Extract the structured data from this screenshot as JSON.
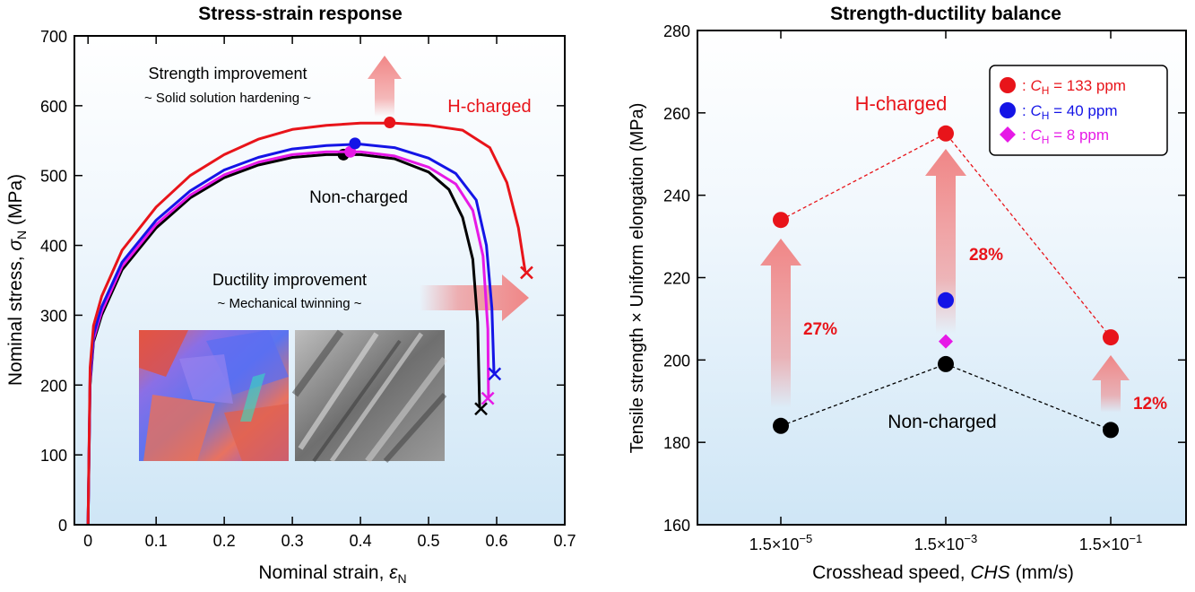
{
  "colors": {
    "h_charged": "#e8141a",
    "ch40": "#1414e6",
    "ch8": "#e619e6",
    "non_charged": "#000000",
    "arrow": "#f08080",
    "bg_top": "#ffffff",
    "bg_bottom": "#cfe6f6"
  },
  "chart_data": [
    {
      "type": "line",
      "title": "Stress-strain response",
      "xlabel_text": "Nominal strain, ",
      "xlabel_symbol": "ε",
      "xlabel_sub": "N",
      "ylabel_text": "Nominal stress, ",
      "ylabel_symbol": "σ",
      "ylabel_sub": "N",
      "ylabel_unit": " (MPa)",
      "xlim": [
        -0.02,
        0.7
      ],
      "ylim": [
        0,
        700
      ],
      "xticks": [
        0,
        0.1,
        0.2,
        0.3,
        0.4,
        0.5,
        0.6,
        0.7
      ],
      "xtick_labels": [
        "0",
        "0.1",
        "0.2",
        "0.3",
        "0.4",
        "0.5",
        "0.6",
        "0.7"
      ],
      "yticks": [
        0,
        100,
        200,
        300,
        400,
        500,
        600,
        700
      ],
      "ytick_labels": [
        "0",
        "100",
        "200",
        "300",
        "400",
        "500",
        "600",
        "700"
      ],
      "series": [
        {
          "key": "non_charged",
          "color": "#000000",
          "x": [
            0,
            0.003,
            0.008,
            0.02,
            0.05,
            0.1,
            0.15,
            0.2,
            0.25,
            0.3,
            0.35,
            0.4,
            0.45,
            0.5,
            0.53,
            0.55,
            0.565,
            0.572,
            0.575
          ],
          "y": [
            0,
            200,
            262,
            300,
            365,
            425,
            468,
            497,
            515,
            526,
            530,
            530,
            524,
            505,
            480,
            440,
            380,
            290,
            168
          ],
          "max_point": [
            0.375,
            530
          ],
          "fracture": [
            0.577,
            166
          ]
        },
        {
          "key": "ch8",
          "color": "#e619e6",
          "x": [
            0,
            0.003,
            0.008,
            0.02,
            0.05,
            0.1,
            0.15,
            0.2,
            0.25,
            0.3,
            0.35,
            0.4,
            0.45,
            0.5,
            0.54,
            0.565,
            0.58,
            0.587,
            0.588
          ],
          "y": [
            0,
            205,
            266,
            305,
            370,
            430,
            472,
            501,
            519,
            530,
            534,
            534,
            528,
            512,
            488,
            450,
            385,
            280,
            182
          ],
          "max_point": [
            0.385,
            534
          ],
          "fracture": [
            0.587,
            181
          ]
        },
        {
          "key": "ch40",
          "color": "#1414e6",
          "x": [
            0,
            0.003,
            0.008,
            0.02,
            0.05,
            0.1,
            0.15,
            0.2,
            0.25,
            0.3,
            0.35,
            0.4,
            0.45,
            0.5,
            0.54,
            0.57,
            0.585,
            0.593,
            0.596
          ],
          "y": [
            0,
            212,
            272,
            312,
            376,
            436,
            478,
            508,
            526,
            538,
            543,
            545,
            540,
            525,
            503,
            465,
            400,
            310,
            218
          ],
          "max_point": [
            0.392,
            546
          ],
          "fracture": [
            0.597,
            216
          ]
        },
        {
          "key": "h_charged",
          "color": "#e8141a",
          "x": [
            0,
            0.003,
            0.008,
            0.02,
            0.05,
            0.1,
            0.15,
            0.2,
            0.25,
            0.3,
            0.35,
            0.4,
            0.45,
            0.5,
            0.55,
            0.59,
            0.615,
            0.632,
            0.642
          ],
          "y": [
            0,
            225,
            285,
            327,
            393,
            455,
            500,
            530,
            552,
            566,
            572,
            575,
            575,
            572,
            565,
            540,
            490,
            425,
            362
          ],
          "max_point": [
            0.443,
            576
          ],
          "fracture": [
            0.644,
            361
          ]
        }
      ],
      "annotations": {
        "h_charged_label": "H-charged",
        "non_charged_label": "Non-charged",
        "strength_title": "Strength improvement",
        "strength_sub": "~ Solid solution hardening ~",
        "ductility_title": "Ductility improvement",
        "ductility_sub": "~ Mechanical twinning ~"
      }
    },
    {
      "type": "scatter",
      "title": "Strength-ductility balance",
      "xlabel_text": "Crosshead speed, ",
      "xlabel_italic": "CHS",
      "xlabel_unit": " (mm/s)",
      "ylabel": "Tensile strength × Uniform elongation (MPa)",
      "categories": [
        "1.5×10⁻⁵",
        "1.5×10⁻³",
        "1.5×10⁻¹"
      ],
      "category_base": "1.5×10",
      "category_exponents": [
        "−5",
        "−3",
        "−1"
      ],
      "ylim": [
        160,
        280
      ],
      "yticks": [
        160,
        180,
        200,
        220,
        240,
        260,
        280
      ],
      "ytick_labels": [
        "160",
        "180",
        "200",
        "220",
        "240",
        "260",
        "280"
      ],
      "legend_position": "top-right",
      "series": [
        {
          "key": "h_charged",
          "name_prefix": "C",
          "name_sub": "H",
          "name_value": " = 133 ppm",
          "color": "#e8141a",
          "marker": "circle",
          "x_index": [
            0,
            1,
            2
          ],
          "values": [
            234,
            255,
            205.5
          ]
        },
        {
          "key": "ch40",
          "name_prefix": "C",
          "name_sub": "H",
          "name_value": " = 40 ppm",
          "color": "#1414e6",
          "marker": "circle",
          "x_index": [
            1
          ],
          "values": [
            214.5
          ]
        },
        {
          "key": "ch8",
          "name_prefix": "C",
          "name_sub": "H",
          "name_value": " = 8 ppm",
          "color": "#e619e6",
          "marker": "diamond",
          "x_index": [
            1
          ],
          "values": [
            204.5
          ]
        },
        {
          "key": "non_charged",
          "name": "",
          "color": "#000000",
          "marker": "circle",
          "x_index": [
            0,
            1,
            2
          ],
          "values": [
            184,
            199,
            183
          ]
        }
      ],
      "improvements": [
        "27%",
        "28%",
        "12%"
      ],
      "annotations": {
        "h_charged_label": "H-charged",
        "non_charged_label": "Non-charged",
        "legend_separator": ": "
      }
    }
  ]
}
